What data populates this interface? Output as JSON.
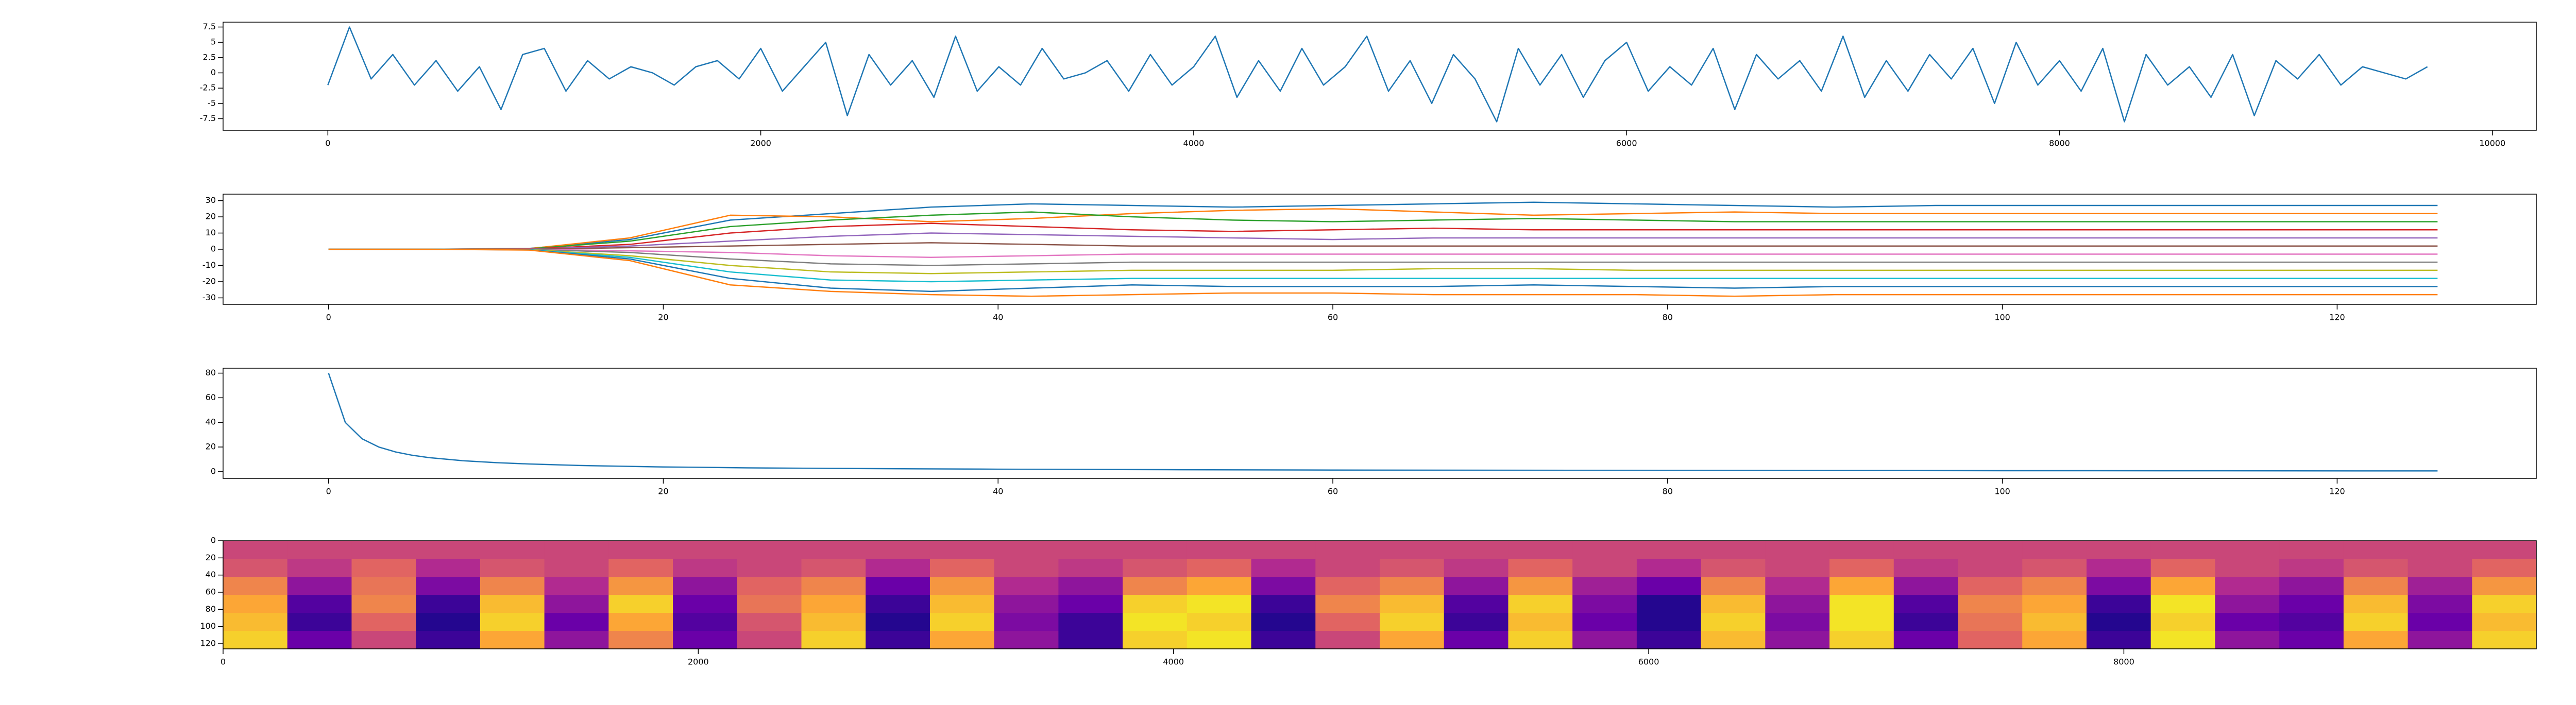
{
  "chart_data": [
    {
      "type": "line",
      "x": [
        0,
        100,
        200,
        300,
        400,
        500,
        600,
        700,
        800,
        900,
        1000,
        1100,
        1200,
        1300,
        1400,
        1500,
        1600,
        1700,
        1800,
        1900,
        2000,
        2100,
        2200,
        2300,
        2400,
        2500,
        2600,
        2700,
        2800,
        2900,
        3000,
        3100,
        3200,
        3300,
        3400,
        3500,
        3600,
        3700,
        3800,
        3900,
        4000,
        4100,
        4200,
        4300,
        4400,
        4500,
        4600,
        4700,
        4800,
        4900,
        5000,
        5100,
        5200,
        5300,
        5400,
        5500,
        5600,
        5700,
        5800,
        5900,
        6000,
        6100,
        6200,
        6300,
        6400,
        6500,
        6600,
        6700,
        6800,
        6900,
        7000,
        7100,
        7200,
        7300,
        7400,
        7500,
        7600,
        7700,
        7800,
        7900,
        8000,
        8100,
        8200,
        8300,
        8400,
        8500,
        8600,
        8700,
        8800,
        8900,
        9000,
        9100,
        9200,
        9300,
        9400,
        9500,
        9600,
        9700
      ],
      "series": [
        {
          "color": "#1f77b4",
          "values": [
            -2,
            7.5,
            -1,
            3,
            -2,
            2,
            -3,
            1,
            -6,
            3,
            4,
            -3,
            2,
            -1,
            1,
            0,
            -2,
            1,
            2,
            -1,
            4,
            -3,
            1,
            5,
            -7,
            3,
            -2,
            2,
            -4,
            6,
            -3,
            1,
            -2,
            4,
            -1,
            0,
            2,
            -3,
            3,
            -2,
            1,
            6,
            -4,
            2,
            -3,
            4,
            -2,
            1,
            6,
            -3,
            2,
            -5,
            3,
            -1,
            -8,
            4,
            -2,
            3,
            -4,
            2,
            5,
            -3,
            1,
            -2,
            4,
            -6,
            3,
            -1,
            2,
            -3,
            6,
            -4,
            2,
            -3,
            3,
            -1,
            4,
            -5,
            5,
            -2,
            2,
            -3,
            4,
            -8,
            3,
            -2,
            1,
            -4,
            3,
            -7,
            2,
            -1,
            3,
            -2,
            1,
            0,
            -1,
            1
          ]
        }
      ],
      "xlim": [
        -484,
        10203
      ],
      "xticks": [
        0,
        2000,
        4000,
        6000,
        8000,
        10000
      ],
      "ylim": [
        -9.4,
        8.3
      ],
      "yticks": [
        -7.5,
        -5.0,
        -2.5,
        0.0,
        2.5,
        5.0,
        7.5
      ]
    },
    {
      "type": "line",
      "x": [
        0,
        6,
        12,
        18,
        24,
        30,
        36,
        42,
        48,
        54,
        60,
        66,
        72,
        78,
        84,
        90,
        96,
        102,
        108,
        114,
        120,
        126
      ],
      "series": [
        {
          "color": "#1f77b4",
          "values": [
            0,
            0,
            0.5,
            6,
            18,
            22,
            26,
            28,
            27,
            26,
            27,
            28,
            29,
            28,
            27,
            26,
            27,
            27,
            27,
            27,
            27,
            27
          ]
        },
        {
          "color": "#ff7f0e",
          "values": [
            0,
            0,
            0.4,
            7,
            21,
            20,
            17,
            19,
            22,
            24,
            25,
            23,
            21,
            22,
            23,
            22,
            22,
            22,
            22,
            22,
            22,
            22
          ]
        },
        {
          "color": "#2ca02c",
          "values": [
            0,
            0,
            0.3,
            5,
            14,
            18,
            21,
            23,
            20,
            18,
            17,
            18,
            19,
            18,
            17,
            17,
            17,
            17,
            17,
            17,
            17,
            17
          ]
        },
        {
          "color": "#d62728",
          "values": [
            0,
            0,
            0.2,
            3,
            10,
            14,
            16,
            14,
            12,
            11,
            12,
            13,
            12,
            12,
            12,
            12,
            12,
            12,
            12,
            12,
            12,
            12
          ]
        },
        {
          "color": "#9467bd",
          "values": [
            0,
            0,
            0.1,
            2,
            5,
            8,
            10,
            9,
            8,
            7,
            6,
            7,
            7,
            7,
            7,
            7,
            7,
            7,
            7,
            7,
            7,
            7
          ]
        },
        {
          "color": "#8c564b",
          "values": [
            0,
            0,
            0,
            1,
            2,
            3,
            4,
            3,
            2,
            2,
            2,
            2,
            2,
            2,
            2,
            2,
            2,
            2,
            2,
            2,
            2,
            2
          ]
        },
        {
          "color": "#e377c2",
          "values": [
            0,
            0,
            0,
            -1,
            -2,
            -4,
            -5,
            -4,
            -3,
            -3,
            -3,
            -3,
            -3,
            -3,
            -3,
            -3,
            -3,
            -3,
            -3,
            -3,
            -3,
            -3
          ]
        },
        {
          "color": "#7f7f7f",
          "values": [
            0,
            0,
            -0.1,
            -2,
            -6,
            -9,
            -10,
            -9,
            -8,
            -8,
            -8,
            -8,
            -8,
            -8,
            -8,
            -8,
            -8,
            -8,
            -8,
            -8,
            -8,
            -8
          ]
        },
        {
          "color": "#bcbd22",
          "values": [
            0,
            0,
            -0.2,
            -4,
            -10,
            -14,
            -15,
            -14,
            -13,
            -13,
            -13,
            -12,
            -12,
            -13,
            -13,
            -13,
            -13,
            -13,
            -13,
            -13,
            -13,
            -13
          ]
        },
        {
          "color": "#17becf",
          "values": [
            0,
            0,
            -0.3,
            -5,
            -14,
            -19,
            -20,
            -19,
            -18,
            -18,
            -18,
            -18,
            -18,
            -18,
            -18,
            -18,
            -18,
            -18,
            -18,
            -18,
            -18,
            -18
          ]
        },
        {
          "color": "#1f77b4",
          "values": [
            0,
            0,
            -0.4,
            -6,
            -18,
            -24,
            -26,
            -24,
            -22,
            -23,
            -23,
            -23,
            -22,
            -23,
            -24,
            -23,
            -23,
            -23,
            -23,
            -23,
            -23,
            -23
          ]
        },
        {
          "color": "#ff7f0e",
          "values": [
            0,
            0,
            -0.5,
            -7,
            -22,
            -26,
            -28,
            -29,
            -28,
            -27,
            -27,
            -28,
            -28,
            -28,
            -29,
            -28,
            -28,
            -28,
            -28,
            -28,
            -28,
            -28
          ]
        }
      ],
      "xlim": [
        -6.3,
        131.9
      ],
      "xticks": [
        0,
        20,
        40,
        60,
        80,
        100,
        120
      ],
      "ylim": [
        -34,
        34
      ],
      "yticks": [
        -30,
        -20,
        -10,
        0,
        10,
        20,
        30
      ]
    },
    {
      "type": "line",
      "x": [
        0,
        1,
        2,
        3,
        4,
        5,
        6,
        8,
        10,
        12,
        15,
        20,
        25,
        30,
        40,
        50,
        60,
        80,
        100,
        126
      ],
      "series": [
        {
          "color": "#1f77b4",
          "values": [
            80,
            40,
            26.7,
            20,
            16,
            13.3,
            11.4,
            8.9,
            7.3,
            6.2,
            5,
            3.8,
            3.1,
            2.6,
            2,
            1.6,
            1.3,
            1,
            0.8,
            0.6
          ]
        }
      ],
      "xlim": [
        -6.3,
        131.9
      ],
      "xticks": [
        0,
        20,
        40,
        60,
        80,
        100,
        120
      ],
      "ylim": [
        -5.5,
        84
      ],
      "yticks": [
        0,
        20,
        40,
        60,
        80
      ]
    },
    {
      "type": "heatmap",
      "colormap": "plasma",
      "z": [
        [
          0.5,
          0.5,
          0.5,
          0.5,
          0.5,
          0.5,
          0.5,
          0.5,
          0.5,
          0.5,
          0.5,
          0.5,
          0.5,
          0.5,
          0.5,
          0.5,
          0.5,
          0.5,
          0.5,
          0.5,
          0.5,
          0.5,
          0.5,
          0.5,
          0.5,
          0.5,
          0.5,
          0.5,
          0.5,
          0.5,
          0.5,
          0.5,
          0.5,
          0.5,
          0.5,
          0.5
        ],
        [
          0.55,
          0.45,
          0.6,
          0.4,
          0.55,
          0.5,
          0.6,
          0.45,
          0.5,
          0.55,
          0.4,
          0.6,
          0.5,
          0.45,
          0.55,
          0.6,
          0.4,
          0.5,
          0.55,
          0.45,
          0.6,
          0.5,
          0.4,
          0.55,
          0.5,
          0.6,
          0.45,
          0.5,
          0.55,
          0.4,
          0.6,
          0.5,
          0.45,
          0.55,
          0.5,
          0.6
        ],
        [
          0.7,
          0.3,
          0.65,
          0.25,
          0.7,
          0.4,
          0.75,
          0.3,
          0.6,
          0.7,
          0.2,
          0.75,
          0.4,
          0.3,
          0.7,
          0.8,
          0.25,
          0.6,
          0.7,
          0.3,
          0.75,
          0.35,
          0.2,
          0.7,
          0.4,
          0.8,
          0.3,
          0.6,
          0.7,
          0.25,
          0.8,
          0.4,
          0.3,
          0.7,
          0.35,
          0.75
        ],
        [
          0.8,
          0.15,
          0.7,
          0.1,
          0.85,
          0.3,
          0.9,
          0.2,
          0.65,
          0.8,
          0.1,
          0.85,
          0.3,
          0.2,
          0.9,
          0.95,
          0.1,
          0.7,
          0.85,
          0.15,
          0.9,
          0.25,
          0.05,
          0.85,
          0.3,
          0.95,
          0.15,
          0.7,
          0.8,
          0.1,
          0.95,
          0.3,
          0.2,
          0.85,
          0.25,
          0.9
        ],
        [
          0.85,
          0.1,
          0.6,
          0.05,
          0.9,
          0.2,
          0.8,
          0.15,
          0.55,
          0.85,
          0.05,
          0.9,
          0.25,
          0.1,
          0.95,
          0.9,
          0.05,
          0.6,
          0.9,
          0.1,
          0.85,
          0.2,
          0.05,
          0.9,
          0.25,
          0.95,
          0.1,
          0.65,
          0.85,
          0.05,
          0.9,
          0.2,
          0.15,
          0.9,
          0.2,
          0.85
        ],
        [
          0.9,
          0.2,
          0.5,
          0.1,
          0.8,
          0.3,
          0.7,
          0.2,
          0.5,
          0.9,
          0.1,
          0.8,
          0.3,
          0.1,
          0.9,
          0.95,
          0.1,
          0.5,
          0.8,
          0.2,
          0.9,
          0.3,
          0.1,
          0.85,
          0.3,
          0.9,
          0.2,
          0.6,
          0.8,
          0.1,
          0.95,
          0.3,
          0.2,
          0.8,
          0.3,
          0.9
        ]
      ],
      "xlim": [
        0,
        9736
      ],
      "xticks": [
        0,
        2000,
        4000,
        6000,
        8000
      ],
      "ylim": [
        126,
        0
      ],
      "yticks": [
        0,
        20,
        40,
        60,
        80,
        100,
        120
      ]
    }
  ]
}
